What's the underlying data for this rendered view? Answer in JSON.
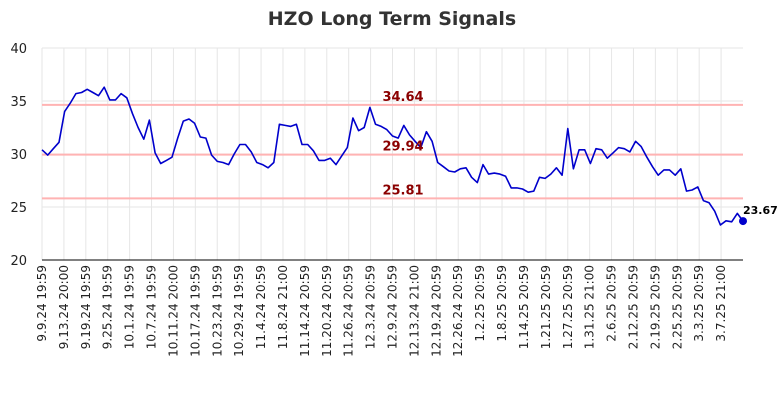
{
  "chart_data": {
    "type": "line",
    "title": "HZO Long Term Signals",
    "xlabel": "",
    "ylabel": "",
    "ylim": [
      20,
      40
    ],
    "yticks": [
      20,
      25,
      30,
      35,
      40
    ],
    "grid": true,
    "legend": "none",
    "x_tick_labels": [
      "9.9.24 19:59",
      "9.13.24 20:00",
      "9.19.24 19:59",
      "9.25.24 19:59",
      "10.1.24 19:59",
      "10.7.24 19:59",
      "10.11.24 20:00",
      "10.17.24 19:59",
      "10.23.24 19:59",
      "10.29.24 19:59",
      "11.4.24 20:59",
      "11.8.24 21:00",
      "11.14.24 20:59",
      "11.20.24 20:59",
      "11.26.24 20:59",
      "12.3.24 20:59",
      "12.9.24 20:59",
      "12.13.24 21:00",
      "12.19.24 20:59",
      "12.26.24 20:59",
      "1.2.25 20:59",
      "1.8.25 20:59",
      "1.14.25 20:59",
      "1.21.25 20:59",
      "1.27.25 20:59",
      "1.31.25 21:00",
      "2.6.25 20:59",
      "2.12.25 20:59",
      "2.19.25 20:59",
      "2.25.25 20:59",
      "3.3.25 20:59",
      "3.7.25 21:00"
    ],
    "series": [
      {
        "color": "#0000cc",
        "values": [
          30.4,
          29.9,
          30.5,
          31.1,
          34.0,
          34.8,
          35.7,
          35.8,
          36.1,
          35.8,
          35.5,
          36.3,
          35.1,
          35.1,
          35.7,
          35.3,
          33.8,
          32.5,
          31.4,
          33.2,
          30.1,
          29.1,
          29.4,
          29.7,
          31.5,
          33.1,
          33.3,
          32.9,
          31.6,
          31.5,
          29.9,
          29.3,
          29.2,
          29.0,
          30.0,
          30.9,
          30.9,
          30.2,
          29.2,
          29.0,
          28.7,
          29.2,
          32.8,
          32.7,
          32.6,
          32.8,
          30.9,
          30.9,
          30.3,
          29.4,
          29.4,
          29.6,
          29.0,
          29.8,
          30.6,
          33.4,
          32.2,
          32.5,
          34.4,
          32.8,
          32.6,
          32.3,
          31.7,
          31.5,
          32.7,
          31.8,
          31.2,
          30.6,
          32.1,
          31.2,
          29.2,
          28.8,
          28.4,
          28.3,
          28.6,
          28.7,
          27.8,
          27.3,
          29.0,
          28.1,
          28.2,
          28.1,
          27.9,
          26.8,
          26.8,
          26.7,
          26.4,
          26.5,
          27.8,
          27.7,
          28.1,
          28.7,
          28.0,
          32.4,
          28.6,
          30.4,
          30.4,
          29.1,
          30.5,
          30.4,
          29.6,
          30.1,
          30.6,
          30.5,
          30.2,
          31.2,
          30.7,
          29.7,
          28.8,
          28.0,
          28.5,
          28.5,
          28.0,
          28.6,
          26.5,
          26.6,
          26.9,
          25.6,
          25.4,
          24.6,
          23.3,
          23.7,
          23.6,
          24.4,
          23.67
        ]
      }
    ],
    "horizontal_lines": [
      {
        "value": 34.64,
        "label": "34.64",
        "color": "#ffb3b3",
        "label_color": "#8b0000"
      },
      {
        "value": 29.94,
        "label": "29.94",
        "color": "#ffb3b3",
        "label_color": "#8b0000"
      },
      {
        "value": 25.81,
        "label": "25.81",
        "color": "#ffb3b3",
        "label_color": "#8b0000"
      }
    ],
    "last_value": {
      "value": 23.67,
      "label": "23.67",
      "color": "#0000cc"
    },
    "colors": {
      "grid": "#e6e6e6",
      "axis": "#000000",
      "background": "#ffffff"
    }
  }
}
